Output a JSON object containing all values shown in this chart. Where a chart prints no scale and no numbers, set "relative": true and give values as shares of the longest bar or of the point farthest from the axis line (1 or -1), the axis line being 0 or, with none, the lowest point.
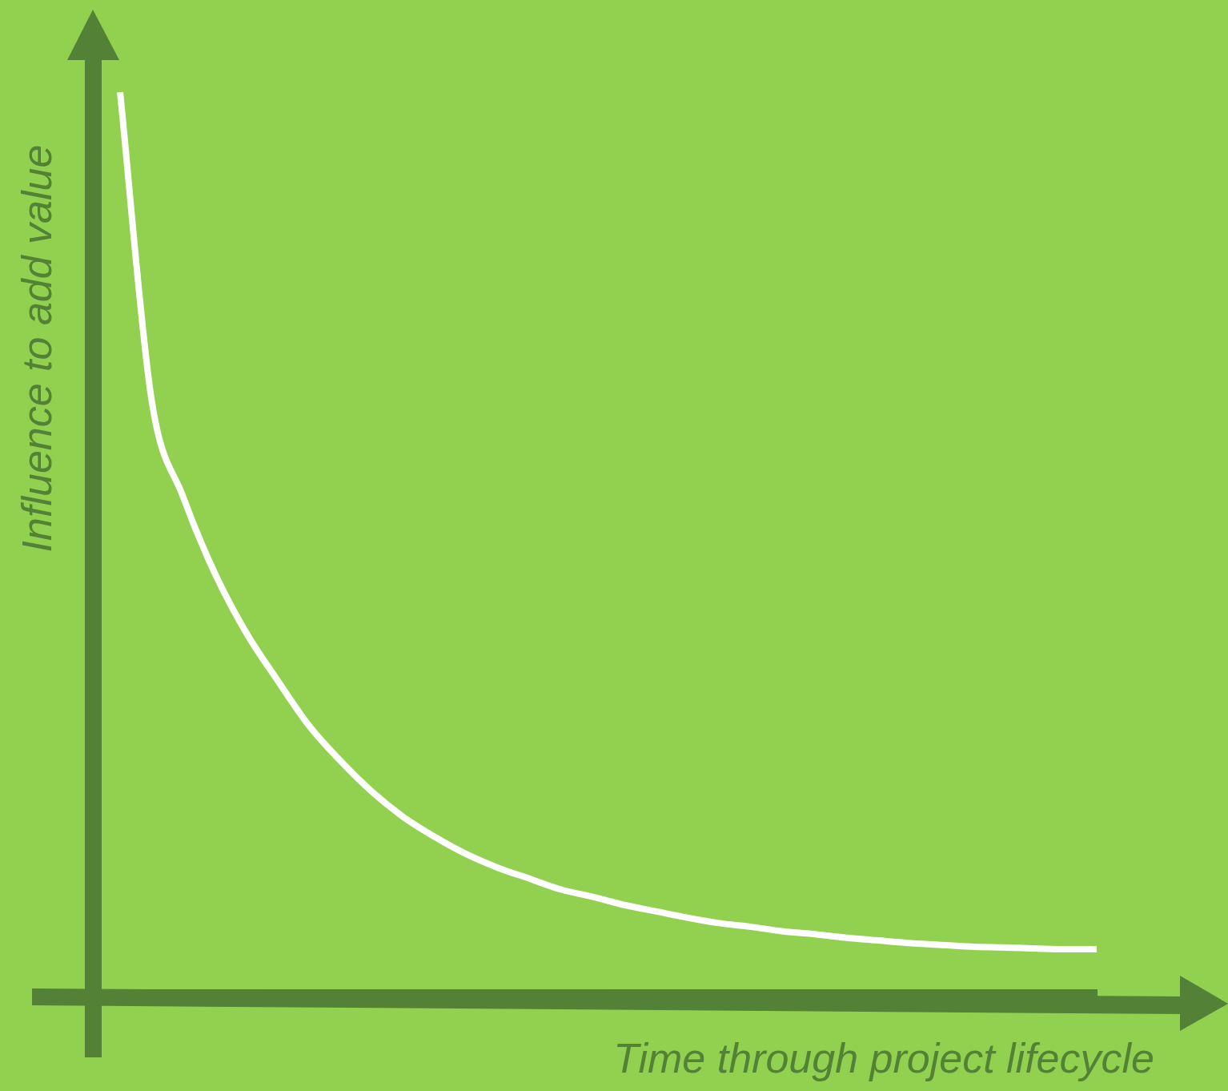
{
  "chart_data": {
    "type": "line",
    "relative": true,
    "xlabel": "Time through project lifecycle",
    "ylabel": "Influence to add value",
    "categories": [
      null,
      null,
      null,
      null,
      null,
      null,
      null,
      null,
      null,
      null,
      null,
      null,
      null,
      null,
      null,
      null,
      null,
      null,
      null,
      null,
      null,
      null,
      null,
      null,
      null,
      null,
      null,
      null,
      null,
      null,
      null,
      null
    ],
    "series": [
      {
        "color": "#ffffff",
        "values": [
          1.0,
          0.66,
          0.553,
          0.469,
          0.403,
          0.35,
          0.3,
          0.261,
          0.227,
          0.199,
          0.177,
          0.158,
          0.143,
          0.131,
          0.119,
          0.111,
          0.102,
          0.095,
          0.088,
          0.082,
          0.078,
          0.073,
          0.07,
          0.066,
          0.063,
          0.06,
          0.058,
          0.056,
          0.055,
          0.054,
          0.053,
          0.053
        ]
      }
    ],
    "line_style": "solid",
    "legend": false
  }
}
